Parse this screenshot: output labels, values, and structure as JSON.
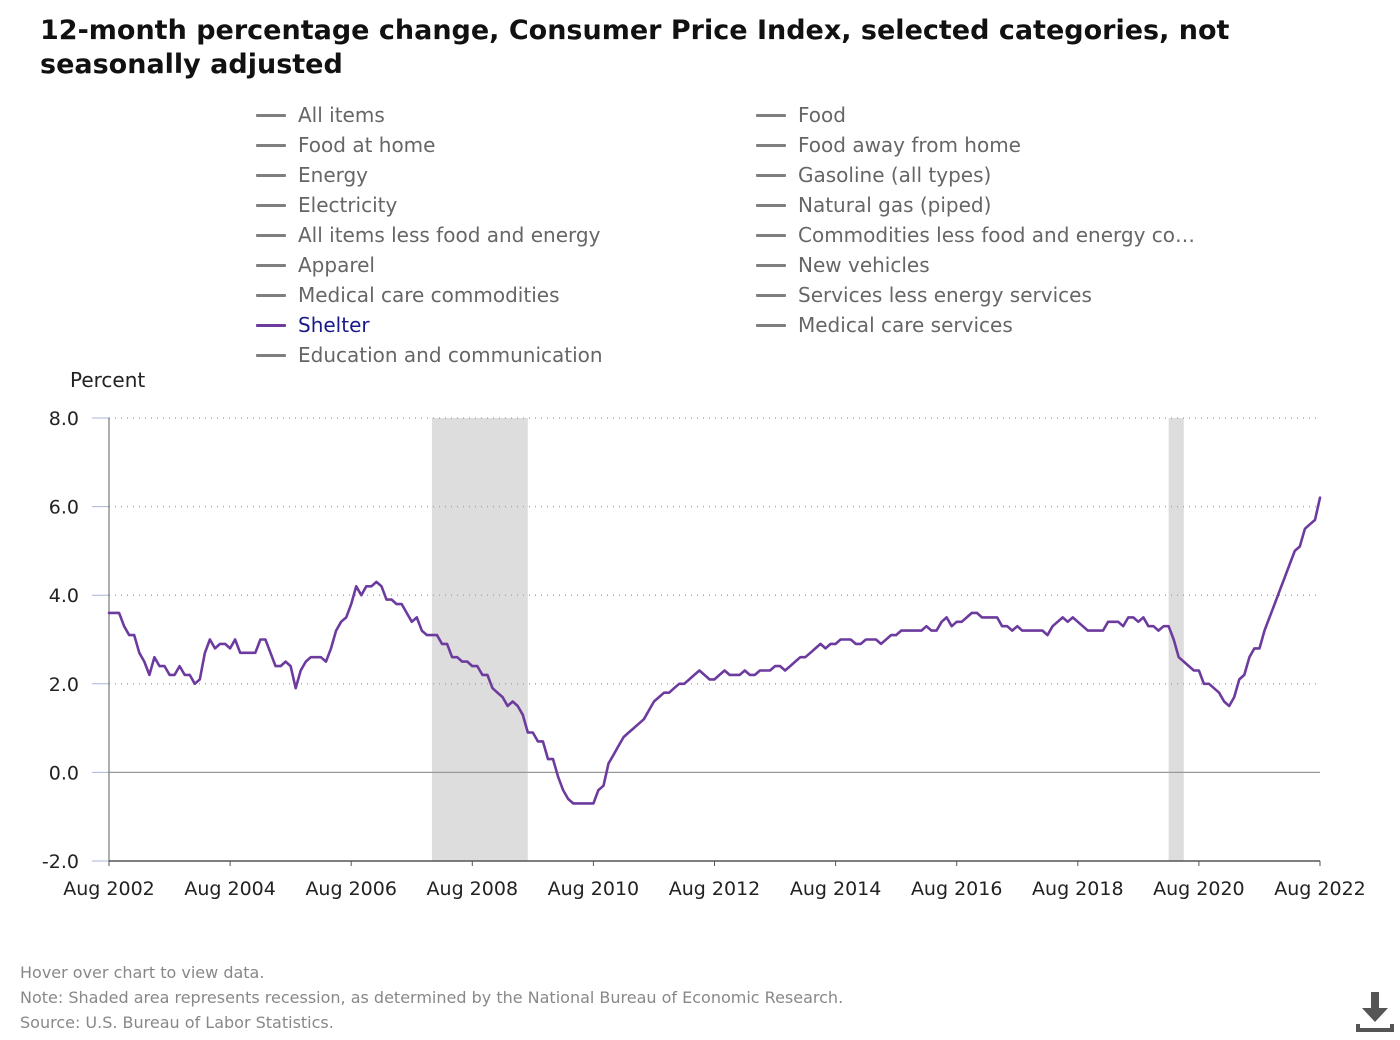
{
  "title": "12-month percentage change, Consumer Price Index, selected categories, not seasonally adjusted",
  "legend": {
    "left": [
      "All items",
      "Food at home",
      "Energy",
      "Electricity",
      "All items less food and energy",
      "Apparel",
      "Medical care commodities",
      "Shelter",
      "Education and communication"
    ],
    "right": [
      "Food",
      "Food away from home",
      "Gasoline (all types)",
      "Natural gas (piped)",
      "Commodities less food and energy com...",
      "New vehicles",
      "Services less energy services",
      "Medical care services"
    ],
    "active": "Shelter"
  },
  "notes": {
    "hover": "Hover over chart to view data.",
    "note": "Note: Shaded area represents recession, as determined by the National Bureau of Economic Research.",
    "source": "Source: U.S. Bureau of Labor Statistics."
  },
  "colors": {
    "series": "#6d3b9e",
    "inactive": "#7f7f7f",
    "recession": "#dddddd",
    "grid": "#aaaaaa"
  },
  "icons": {
    "download": "download-icon"
  },
  "chart_data": {
    "type": "line",
    "ylabel": "Percent",
    "ylim": [
      -2,
      8
    ],
    "yticks": [
      "-2.0",
      "0.0",
      "2.0",
      "4.0",
      "6.0",
      "8.0"
    ],
    "xticks": [
      "Aug 2002",
      "Aug 2004",
      "Aug 2006",
      "Aug 2008",
      "Aug 2010",
      "Aug 2012",
      "Aug 2014",
      "Aug 2016",
      "Aug 2018",
      "Aug 2020",
      "Aug 2022"
    ],
    "grid": true,
    "recessions": [
      [
        "2007-12",
        "2009-06"
      ],
      [
        "2020-02",
        "2020-04"
      ]
    ],
    "series": [
      {
        "name": "Shelter",
        "points": [
          [
            "2002-08",
            3.6
          ],
          [
            "2002-09",
            3.6
          ],
          [
            "2002-10",
            3.6
          ],
          [
            "2002-11",
            3.3
          ],
          [
            "2002-12",
            3.1
          ],
          [
            "2003-01",
            3.1
          ],
          [
            "2003-02",
            2.7
          ],
          [
            "2003-03",
            2.5
          ],
          [
            "2003-04",
            2.2
          ],
          [
            "2003-05",
            2.6
          ],
          [
            "2003-06",
            2.4
          ],
          [
            "2003-07",
            2.4
          ],
          [
            "2003-08",
            2.2
          ],
          [
            "2003-09",
            2.2
          ],
          [
            "2003-10",
            2.4
          ],
          [
            "2003-11",
            2.2
          ],
          [
            "2003-12",
            2.2
          ],
          [
            "2004-01",
            2.0
          ],
          [
            "2004-02",
            2.1
          ],
          [
            "2004-03",
            2.7
          ],
          [
            "2004-04",
            3.0
          ],
          [
            "2004-05",
            2.8
          ],
          [
            "2004-06",
            2.9
          ],
          [
            "2004-07",
            2.9
          ],
          [
            "2004-08",
            2.8
          ],
          [
            "2004-09",
            3.0
          ],
          [
            "2004-10",
            2.7
          ],
          [
            "2004-11",
            2.7
          ],
          [
            "2004-12",
            2.7
          ],
          [
            "2005-01",
            2.7
          ],
          [
            "2005-02",
            3.0
          ],
          [
            "2005-03",
            3.0
          ],
          [
            "2005-04",
            2.7
          ],
          [
            "2005-05",
            2.4
          ],
          [
            "2005-06",
            2.4
          ],
          [
            "2005-07",
            2.5
          ],
          [
            "2005-08",
            2.4
          ],
          [
            "2005-09",
            1.9
          ],
          [
            "2005-10",
            2.3
          ],
          [
            "2005-11",
            2.5
          ],
          [
            "2005-12",
            2.6
          ],
          [
            "2006-01",
            2.6
          ],
          [
            "2006-02",
            2.6
          ],
          [
            "2006-03",
            2.5
          ],
          [
            "2006-04",
            2.8
          ],
          [
            "2006-05",
            3.2
          ],
          [
            "2006-06",
            3.4
          ],
          [
            "2006-07",
            3.5
          ],
          [
            "2006-08",
            3.8
          ],
          [
            "2006-09",
            4.2
          ],
          [
            "2006-10",
            4.0
          ],
          [
            "2006-11",
            4.2
          ],
          [
            "2006-12",
            4.2
          ],
          [
            "2007-01",
            4.3
          ],
          [
            "2007-02",
            4.2
          ],
          [
            "2007-03",
            3.9
          ],
          [
            "2007-04",
            3.9
          ],
          [
            "2007-05",
            3.8
          ],
          [
            "2007-06",
            3.8
          ],
          [
            "2007-07",
            3.6
          ],
          [
            "2007-08",
            3.4
          ],
          [
            "2007-09",
            3.5
          ],
          [
            "2007-10",
            3.2
          ],
          [
            "2007-11",
            3.1
          ],
          [
            "2007-12",
            3.1
          ],
          [
            "2008-01",
            3.1
          ],
          [
            "2008-02",
            2.9
          ],
          [
            "2008-03",
            2.9
          ],
          [
            "2008-04",
            2.6
          ],
          [
            "2008-05",
            2.6
          ],
          [
            "2008-06",
            2.5
          ],
          [
            "2008-07",
            2.5
          ],
          [
            "2008-08",
            2.4
          ],
          [
            "2008-09",
            2.4
          ],
          [
            "2008-10",
            2.2
          ],
          [
            "2008-11",
            2.2
          ],
          [
            "2008-12",
            1.9
          ],
          [
            "2009-01",
            1.8
          ],
          [
            "2009-02",
            1.7
          ],
          [
            "2009-03",
            1.5
          ],
          [
            "2009-04",
            1.6
          ],
          [
            "2009-05",
            1.5
          ],
          [
            "2009-06",
            1.3
          ],
          [
            "2009-07",
            0.9
          ],
          [
            "2009-08",
            0.9
          ],
          [
            "2009-09",
            0.7
          ],
          [
            "2009-10",
            0.7
          ],
          [
            "2009-11",
            0.3
          ],
          [
            "2009-12",
            0.3
          ],
          [
            "2010-01",
            -0.1
          ],
          [
            "2010-02",
            -0.4
          ],
          [
            "2010-03",
            -0.6
          ],
          [
            "2010-04",
            -0.7
          ],
          [
            "2010-05",
            -0.7
          ],
          [
            "2010-06",
            -0.7
          ],
          [
            "2010-07",
            -0.7
          ],
          [
            "2010-08",
            -0.7
          ],
          [
            "2010-09",
            -0.4
          ],
          [
            "2010-10",
            -0.3
          ],
          [
            "2010-11",
            0.2
          ],
          [
            "2010-12",
            0.4
          ],
          [
            "2011-01",
            0.6
          ],
          [
            "2011-02",
            0.8
          ],
          [
            "2011-03",
            0.9
          ],
          [
            "2011-04",
            1.0
          ],
          [
            "2011-05",
            1.1
          ],
          [
            "2011-06",
            1.2
          ],
          [
            "2011-07",
            1.4
          ],
          [
            "2011-08",
            1.6
          ],
          [
            "2011-09",
            1.7
          ],
          [
            "2011-10",
            1.8
          ],
          [
            "2011-11",
            1.8
          ],
          [
            "2011-12",
            1.9
          ],
          [
            "2012-01",
            2.0
          ],
          [
            "2012-02",
            2.0
          ],
          [
            "2012-03",
            2.1
          ],
          [
            "2012-04",
            2.2
          ],
          [
            "2012-05",
            2.3
          ],
          [
            "2012-06",
            2.2
          ],
          [
            "2012-07",
            2.1
          ],
          [
            "2012-08",
            2.1
          ],
          [
            "2012-09",
            2.2
          ],
          [
            "2012-10",
            2.3
          ],
          [
            "2012-11",
            2.2
          ],
          [
            "2012-12",
            2.2
          ],
          [
            "2013-01",
            2.2
          ],
          [
            "2013-02",
            2.3
          ],
          [
            "2013-03",
            2.2
          ],
          [
            "2013-04",
            2.2
          ],
          [
            "2013-05",
            2.3
          ],
          [
            "2013-06",
            2.3
          ],
          [
            "2013-07",
            2.3
          ],
          [
            "2013-08",
            2.4
          ],
          [
            "2013-09",
            2.4
          ],
          [
            "2013-10",
            2.3
          ],
          [
            "2013-11",
            2.4
          ],
          [
            "2013-12",
            2.5
          ],
          [
            "2014-01",
            2.6
          ],
          [
            "2014-02",
            2.6
          ],
          [
            "2014-03",
            2.7
          ],
          [
            "2014-04",
            2.8
          ],
          [
            "2014-05",
            2.9
          ],
          [
            "2014-06",
            2.8
          ],
          [
            "2014-07",
            2.9
          ],
          [
            "2014-08",
            2.9
          ],
          [
            "2014-09",
            3.0
          ],
          [
            "2014-10",
            3.0
          ],
          [
            "2014-11",
            3.0
          ],
          [
            "2014-12",
            2.9
          ],
          [
            "2015-01",
            2.9
          ],
          [
            "2015-02",
            3.0
          ],
          [
            "2015-03",
            3.0
          ],
          [
            "2015-04",
            3.0
          ],
          [
            "2015-05",
            2.9
          ],
          [
            "2015-06",
            3.0
          ],
          [
            "2015-07",
            3.1
          ],
          [
            "2015-08",
            3.1
          ],
          [
            "2015-09",
            3.2
          ],
          [
            "2015-10",
            3.2
          ],
          [
            "2015-11",
            3.2
          ],
          [
            "2015-12",
            3.2
          ],
          [
            "2016-01",
            3.2
          ],
          [
            "2016-02",
            3.3
          ],
          [
            "2016-03",
            3.2
          ],
          [
            "2016-04",
            3.2
          ],
          [
            "2016-05",
            3.4
          ],
          [
            "2016-06",
            3.5
          ],
          [
            "2016-07",
            3.3
          ],
          [
            "2016-08",
            3.4
          ],
          [
            "2016-09",
            3.4
          ],
          [
            "2016-10",
            3.5
          ],
          [
            "2016-11",
            3.6
          ],
          [
            "2016-12",
            3.6
          ],
          [
            "2017-01",
            3.5
          ],
          [
            "2017-02",
            3.5
          ],
          [
            "2017-03",
            3.5
          ],
          [
            "2017-04",
            3.5
          ],
          [
            "2017-05",
            3.3
          ],
          [
            "2017-06",
            3.3
          ],
          [
            "2017-07",
            3.2
          ],
          [
            "2017-08",
            3.3
          ],
          [
            "2017-09",
            3.2
          ],
          [
            "2017-10",
            3.2
          ],
          [
            "2017-11",
            3.2
          ],
          [
            "2017-12",
            3.2
          ],
          [
            "2018-01",
            3.2
          ],
          [
            "2018-02",
            3.1
          ],
          [
            "2018-03",
            3.3
          ],
          [
            "2018-04",
            3.4
          ],
          [
            "2018-05",
            3.5
          ],
          [
            "2018-06",
            3.4
          ],
          [
            "2018-07",
            3.5
          ],
          [
            "2018-08",
            3.4
          ],
          [
            "2018-09",
            3.3
          ],
          [
            "2018-10",
            3.2
          ],
          [
            "2018-11",
            3.2
          ],
          [
            "2018-12",
            3.2
          ],
          [
            "2019-01",
            3.2
          ],
          [
            "2019-02",
            3.4
          ],
          [
            "2019-03",
            3.4
          ],
          [
            "2019-04",
            3.4
          ],
          [
            "2019-05",
            3.3
          ],
          [
            "2019-06",
            3.5
          ],
          [
            "2019-07",
            3.5
          ],
          [
            "2019-08",
            3.4
          ],
          [
            "2019-09",
            3.5
          ],
          [
            "2019-10",
            3.3
          ],
          [
            "2019-11",
            3.3
          ],
          [
            "2019-12",
            3.2
          ],
          [
            "2020-01",
            3.3
          ],
          [
            "2020-02",
            3.3
          ],
          [
            "2020-03",
            3.0
          ],
          [
            "2020-04",
            2.6
          ],
          [
            "2020-05",
            2.5
          ],
          [
            "2020-06",
            2.4
          ],
          [
            "2020-07",
            2.3
          ],
          [
            "2020-08",
            2.3
          ],
          [
            "2020-09",
            2.0
          ],
          [
            "2020-10",
            2.0
          ],
          [
            "2020-11",
            1.9
          ],
          [
            "2020-12",
            1.8
          ],
          [
            "2021-01",
            1.6
          ],
          [
            "2021-02",
            1.5
          ],
          [
            "2021-03",
            1.7
          ],
          [
            "2021-04",
            2.1
          ],
          [
            "2021-05",
            2.2
          ],
          [
            "2021-06",
            2.6
          ],
          [
            "2021-07",
            2.8
          ],
          [
            "2021-08",
            2.8
          ],
          [
            "2021-09",
            3.2
          ],
          [
            "2021-10",
            3.5
          ],
          [
            "2021-11",
            3.8
          ],
          [
            "2021-12",
            4.1
          ],
          [
            "2022-01",
            4.4
          ],
          [
            "2022-02",
            4.7
          ],
          [
            "2022-03",
            5.0
          ],
          [
            "2022-04",
            5.1
          ],
          [
            "2022-05",
            5.5
          ],
          [
            "2022-06",
            5.6
          ],
          [
            "2022-07",
            5.7
          ],
          [
            "2022-08",
            6.2
          ]
        ]
      }
    ]
  }
}
